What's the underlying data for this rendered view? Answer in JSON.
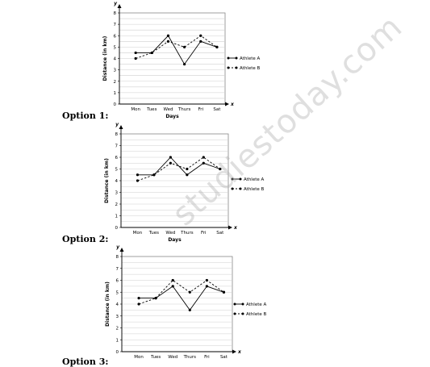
{
  "watermark": "studiestoday.com",
  "chart_data": [
    {
      "type": "line",
      "option_label": "Option 1:",
      "categories": [
        "Mon",
        "Tues",
        "Wed",
        "Thurs",
        "Fri",
        "Sat"
      ],
      "xlabel": "Days",
      "ylabel": "Distance (in km)",
      "x_axis_letter": "x",
      "y_axis_letter": "y",
      "ylim": [
        0,
        8
      ],
      "yticks": [
        0,
        1,
        2,
        3,
        4,
        5,
        6,
        7,
        8
      ],
      "grid": true,
      "legend_position": "right",
      "series": [
        {
          "name": "Athlete A",
          "style": "solid",
          "values": [
            4.5,
            4.5,
            6,
            3.5,
            5.5,
            5
          ]
        },
        {
          "name": "Athlete B",
          "style": "dashed",
          "values": [
            4,
            4.5,
            5.5,
            5,
            6,
            5
          ]
        }
      ]
    },
    {
      "type": "line",
      "option_label": "Option 2:",
      "categories": [
        "Mon",
        "Tues",
        "Wed",
        "Thurs",
        "Fri",
        "Sat"
      ],
      "xlabel": "Days",
      "ylabel": "Distance (in km)",
      "x_axis_letter": "x",
      "y_axis_letter": "y",
      "ylim": [
        0,
        8
      ],
      "yticks": [
        0,
        1,
        2,
        3,
        4,
        5,
        6,
        7,
        8
      ],
      "grid": true,
      "legend_position": "right",
      "series": [
        {
          "name": "Athlete A",
          "style": "solid",
          "values": [
            4.5,
            4.5,
            6,
            4.5,
            5.5,
            5
          ]
        },
        {
          "name": "Athlete B",
          "style": "dashed",
          "values": [
            4,
            4.5,
            5.5,
            5,
            6,
            5
          ]
        }
      ]
    },
    {
      "type": "line",
      "option_label": "Option 3:",
      "categories": [
        "Mon",
        "Tues",
        "Wed",
        "Thurs",
        "Fri",
        "Sat"
      ],
      "xlabel": "Days",
      "ylabel": "Distance (in km)",
      "x_axis_letter": "x",
      "y_axis_letter": "y",
      "ylim": [
        0,
        8
      ],
      "yticks": [
        0,
        1,
        2,
        3,
        4,
        5,
        6,
        7,
        8
      ],
      "grid": true,
      "legend_position": "right",
      "series": [
        {
          "name": "Athlete A",
          "style": "solid",
          "values": [
            4.5,
            4.5,
            5.5,
            3.5,
            5.5,
            5
          ]
        },
        {
          "name": "Athlete B",
          "style": "dashed",
          "values": [
            4,
            4.5,
            6,
            5,
            6,
            5
          ]
        }
      ]
    }
  ]
}
